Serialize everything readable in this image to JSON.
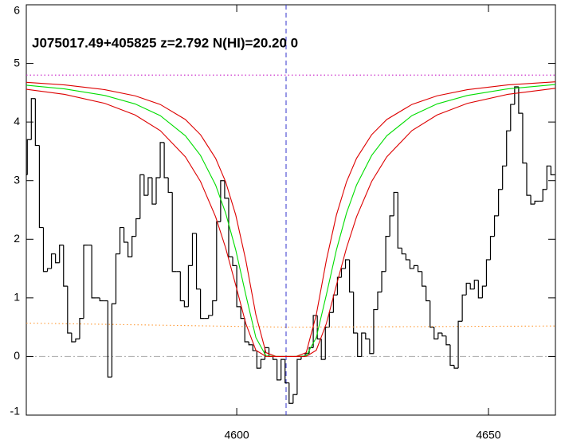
{
  "chart_data": {
    "type": "line",
    "annotation": "J075017.49+405825 z=2.792 N(HI)=20.20 0",
    "xlim": [
      4558.2,
      4663.3
    ],
    "ylim": [
      -1,
      6
    ],
    "xticks": [
      4600,
      4650
    ],
    "yticks": [
      -1,
      0,
      1,
      2,
      3,
      4,
      5,
      6
    ],
    "continuum": {
      "value": 4.8,
      "color": "#cc33cc"
    },
    "zero": {
      "value": 0,
      "color": "#aaaaaa"
    },
    "center": {
      "value": 4609.8,
      "color": "#3333cc"
    },
    "series": [
      {
        "style": "step",
        "color": "#000000",
        "x": [
          4558.0,
          4558.8,
          4559.6,
          4560.4,
          4561.2,
          4562.0,
          4562.8,
          4563.6,
          4564.4,
          4565.2,
          4566.0,
          4566.8,
          4567.6,
          4568.4,
          4569.2,
          4570.0,
          4570.8,
          4571.6,
          4572.4,
          4573.2,
          4574.0,
          4574.8,
          4575.6,
          4576.4,
          4577.2,
          4578.0,
          4578.8,
          4579.6,
          4580.4,
          4581.2,
          4582.0,
          4582.8,
          4583.6,
          4584.4,
          4585.2,
          4586.0,
          4586.8,
          4587.6,
          4588.4,
          4589.2,
          4590.0,
          4590.8,
          4591.6,
          4592.4,
          4593.2,
          4594.0,
          4594.8,
          4595.6,
          4596.4,
          4597.2,
          4598.0,
          4598.8,
          4599.6,
          4600.4,
          4601.2,
          4602.0,
          4602.8,
          4603.6,
          4604.4,
          4605.2,
          4606.0,
          4606.8,
          4607.6,
          4608.4,
          4609.2,
          4610.0,
          4610.8,
          4611.6,
          4612.4,
          4613.2,
          4614.0,
          4614.8,
          4615.6,
          4616.4,
          4617.2,
          4618.0,
          4618.8,
          4619.6,
          4620.4,
          4621.2,
          4622.0,
          4622.8,
          4623.6,
          4624.4,
          4625.2,
          4626.0,
          4626.8,
          4627.6,
          4628.4,
          4629.2,
          4630.0,
          4630.8,
          4631.6,
          4632.4,
          4633.2,
          4634.0,
          4634.8,
          4635.6,
          4636.4,
          4637.2,
          4638.0,
          4638.8,
          4639.6,
          4640.4,
          4641.2,
          4642.0,
          4642.8,
          4643.6,
          4644.4,
          4645.2,
          4646.0,
          4646.8,
          4647.6,
          4648.4,
          4649.2,
          4650.0,
          4650.8,
          4651.6,
          4652.4,
          4653.2,
          4654.0,
          4654.8,
          4655.6,
          4656.4,
          4657.2,
          4658.0,
          4658.8,
          4659.6,
          4660.4,
          4661.2,
          4662.0,
          4662.8
        ],
        "values": [
          3.1,
          3.7,
          4.4,
          3.6,
          2.2,
          1.45,
          1.5,
          1.75,
          1.6,
          1.9,
          1.2,
          0.4,
          0.25,
          0.3,
          0.65,
          1.9,
          1.9,
          1.0,
          1.0,
          0.95,
          0.95,
          -0.35,
          0.9,
          1.75,
          2.2,
          1.95,
          1.7,
          2.05,
          2.35,
          3.1,
          2.75,
          3.05,
          2.6,
          3.05,
          3.65,
          3.05,
          2.8,
          1.45,
          1.45,
          0.95,
          0.85,
          1.55,
          2.1,
          1.15,
          0.65,
          0.65,
          0.7,
          0.95,
          2.3,
          3.0,
          2.7,
          1.7,
          1.55,
          0.85,
          0.65,
          0.25,
          0.2,
          0.1,
          -0.2,
          -0.05,
          0.15,
          0.0,
          -0.05,
          -0.4,
          -0.05,
          -0.45,
          -0.8,
          -0.65,
          -0.05,
          0.0,
          0.05,
          0.15,
          0.7,
          0.3,
          -0.05,
          0.5,
          0.75,
          1.05,
          1.35,
          1.5,
          1.65,
          1.1,
          0.4,
          0.0,
          0.4,
          0.3,
          0.05,
          0.8,
          1.1,
          1.45,
          2.05,
          2.4,
          2.8,
          1.85,
          1.75,
          1.65,
          1.5,
          1.55,
          1.45,
          1.2,
          0.95,
          0.5,
          0.3,
          0.4,
          0.35,
          0.2,
          -0.15,
          -0.2,
          0.6,
          1.05,
          1.25,
          1.15,
          1.3,
          1.0,
          1.2,
          1.65,
          2.05,
          2.4,
          2.85,
          3.25,
          3.85,
          4.3,
          4.6,
          4.15,
          3.3,
          2.75,
          2.6,
          2.65,
          2.65,
          2.85,
          3.25,
          3.1
        ]
      },
      {
        "style": "dotted",
        "color": "#ff9933",
        "x": [
          4558.2,
          4610,
          4663.3
        ],
        "values": [
          0.57,
          0.5,
          0.52
        ]
      },
      {
        "style": "solid",
        "color": "#dd0000",
        "x": [
          4558.2,
          4565.8,
          4573.8,
          4579.8,
          4584.8,
          4589.8,
          4592.8,
          4595.8,
          4597.8,
          4599.8,
          4601.8,
          4603.8,
          4605.8,
          4607.8,
          4609.8,
          4611.8,
          4613.8,
          4615.8,
          4617.8,
          4619.8,
          4621.8,
          4623.8,
          4626.8,
          4629.8,
          4634.8,
          4639.8,
          4645.8,
          4653.8,
          4663.3
        ],
        "values": [
          4.678,
          4.633,
          4.552,
          4.447,
          4.3,
          4.043,
          3.784,
          3.381,
          2.979,
          2.414,
          1.642,
          0.712,
          0.066,
          0,
          0,
          0,
          0.066,
          0.712,
          1.642,
          2.414,
          2.979,
          3.381,
          3.784,
          4.043,
          4.3,
          4.447,
          4.552,
          4.633,
          4.686
        ]
      },
      {
        "style": "solid",
        "color": "#00dd00",
        "x": [
          4558.2,
          4565.8,
          4573.8,
          4579.8,
          4584.8,
          4589.8,
          4592.8,
          4595.8,
          4597.8,
          4599.8,
          4601.8,
          4603.8,
          4605.8,
          4607.8,
          4609.8,
          4611.8,
          4613.8,
          4615.8,
          4617.8,
          4619.8,
          4621.8,
          4623.8,
          4626.8,
          4629.8,
          4634.8,
          4639.8,
          4645.8,
          4653.8,
          4663.3
        ],
        "values": [
          4.628,
          4.565,
          4.453,
          4.309,
          4.109,
          3.765,
          3.43,
          2.925,
          2.446,
          1.818,
          1.053,
          0.324,
          0.011,
          0,
          0,
          0,
          0.011,
          0.324,
          1.053,
          1.818,
          2.446,
          2.925,
          3.43,
          3.765,
          4.109,
          4.309,
          4.453,
          4.565,
          4.64
        ]
      },
      {
        "style": "solid",
        "color": "#dd0000",
        "x": [
          4558.2,
          4565.8,
          4573.8,
          4579.8,
          4584.8,
          4589.8,
          4592.8,
          4595.8,
          4597.8,
          4599.8,
          4601.8,
          4603.8,
          4605.8,
          4607.8,
          4609.8,
          4611.8,
          4613.8,
          4615.8,
          4617.8,
          4619.8,
          4621.8,
          4623.8,
          4626.8,
          4629.8,
          4634.8,
          4639.8,
          4645.8,
          4653.8,
          4663.3
        ],
        "values": [
          4.559,
          4.472,
          4.318,
          4.121,
          3.854,
          3.406,
          2.986,
          2.384,
          1.851,
          1.217,
          0.563,
          0.106,
          0.001,
          0,
          0,
          0,
          0.001,
          0.106,
          0.563,
          1.217,
          1.851,
          2.384,
          2.986,
          3.406,
          3.854,
          4.121,
          4.318,
          4.472,
          4.576
        ]
      }
    ]
  }
}
